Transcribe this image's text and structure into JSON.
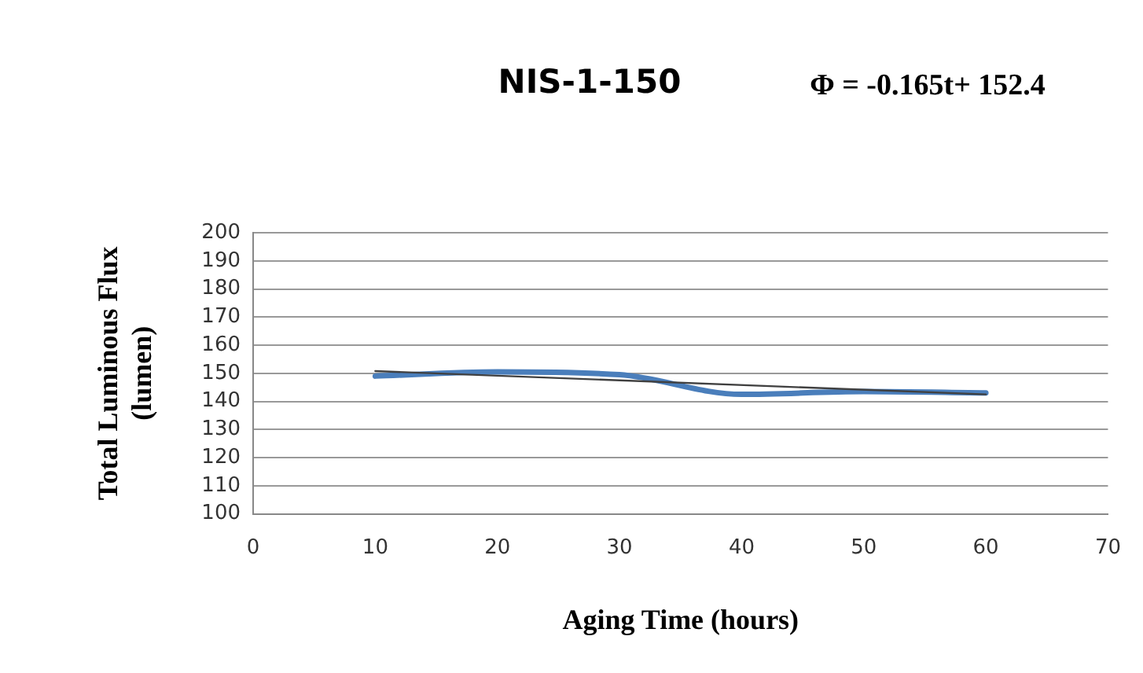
{
  "chart_data": {
    "type": "line",
    "title": "NIS-1-150",
    "xlabel": "Aging Time (hours)",
    "ylabel": "Total Luminous Flux (lumen)",
    "annotations": [
      "Φ = -0.165t+ 152.4"
    ],
    "x": [
      10,
      20,
      30,
      40,
      50,
      60
    ],
    "series": [
      {
        "color": "#4a7ebb",
        "values": [
          149,
          150.5,
          149.5,
          142.5,
          143.5,
          143
        ]
      },
      {
        "color": "#404040",
        "x": [
          10,
          60
        ],
        "values": [
          150.8,
          142.5
        ]
      }
    ],
    "xlim": [
      0,
      70
    ],
    "xticks": [
      0,
      10,
      20,
      30,
      40,
      50,
      60,
      70
    ],
    "ylim": [
      100,
      200
    ],
    "yticks": [
      100,
      110,
      120,
      130,
      140,
      150,
      160,
      170,
      180,
      190,
      200
    ],
    "grid": "y",
    "legend": false,
    "marker": "none"
  }
}
